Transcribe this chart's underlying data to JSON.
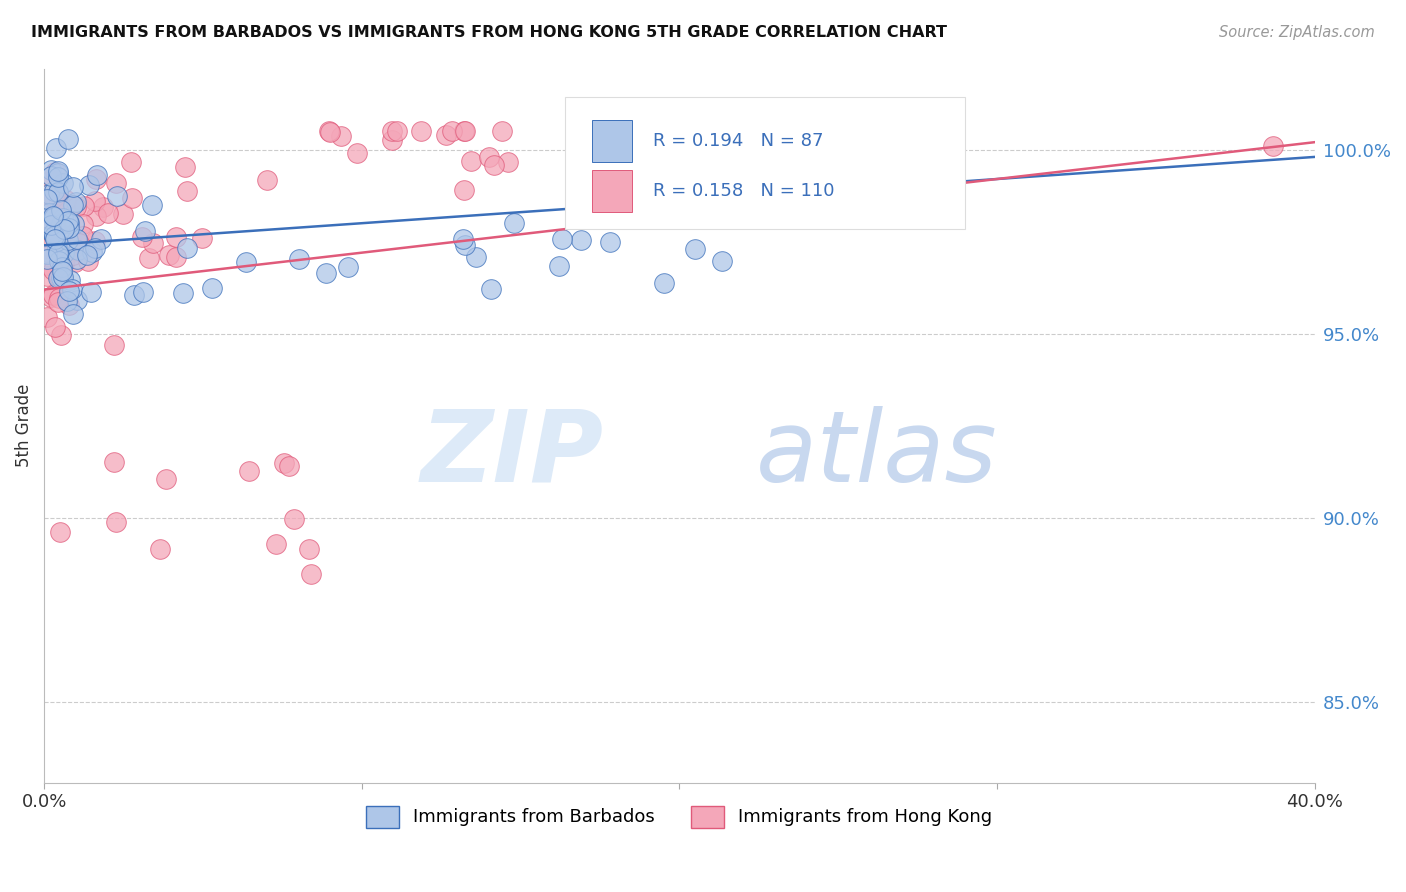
{
  "title": "IMMIGRANTS FROM BARBADOS VS IMMIGRANTS FROM HONG KONG 5TH GRADE CORRELATION CHART",
  "source": "Source: ZipAtlas.com",
  "ylabel": "5th Grade",
  "ylabel_values": [
    1.0,
    0.95,
    0.9,
    0.85
  ],
  "xmin": 0.0,
  "xmax": 0.4,
  "ymin": 0.828,
  "ymax": 1.022,
  "barbados_color": "#aec6e8",
  "hong_kong_color": "#f4a7b9",
  "barbados_line_color": "#3b6fba",
  "hong_kong_line_color": "#e05a7a",
  "R_barbados": 0.194,
  "N_barbados": 87,
  "R_hong_kong": 0.158,
  "N_hong_kong": 110,
  "trend_barbados": [
    0.974,
    0.998
  ],
  "trend_hong_kong": [
    0.962,
    1.002
  ],
  "watermark_zip": "ZIP",
  "watermark_atlas": "atlas"
}
